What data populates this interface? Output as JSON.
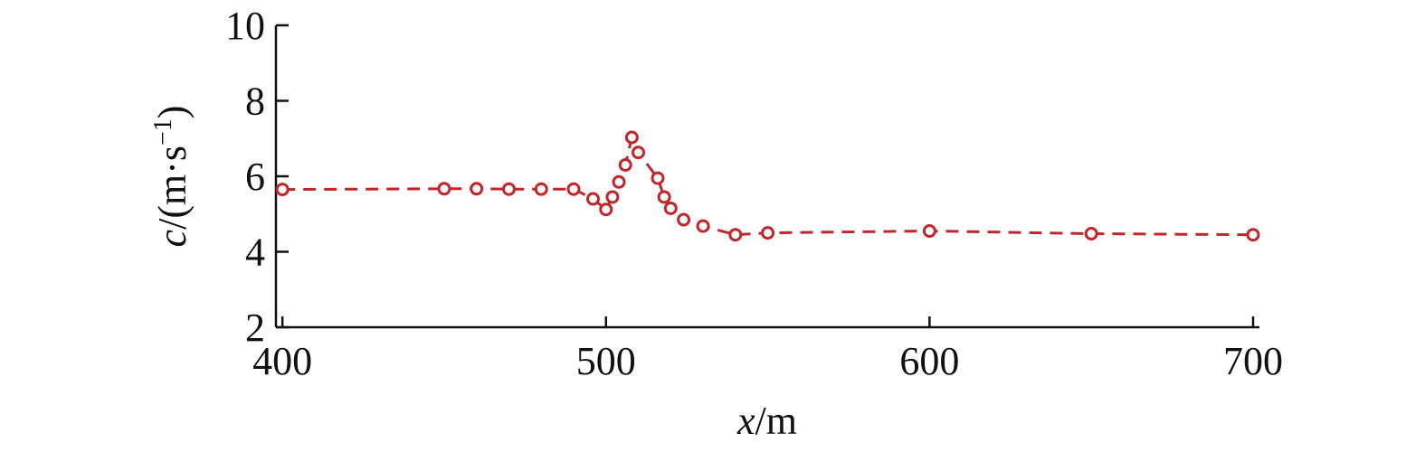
{
  "chart_data": {
    "type": "line",
    "xlabel": {
      "var": "x",
      "unit": "/m"
    },
    "ylabel": {
      "var": "c",
      "unit_prefix": "/(m·s",
      "unit_sup": "−1",
      "unit_suffix": ")"
    },
    "xlim": [
      398,
      700
    ],
    "ylim": [
      2,
      10
    ],
    "xticks": [
      400,
      500,
      600,
      700
    ],
    "yticks": [
      2,
      4,
      6,
      8,
      10
    ],
    "grid": false,
    "series": [
      {
        "color": "#c0272d",
        "marker": "open-circle",
        "line_style": "dashed",
        "x": [
          400,
          450,
          460,
          470,
          480,
          490,
          496,
          500,
          502,
          504,
          506,
          508,
          510,
          516,
          518,
          520,
          524,
          530,
          540,
          550,
          600,
          650,
          700
        ],
        "y": [
          5.65,
          5.67,
          5.67,
          5.66,
          5.66,
          5.66,
          5.4,
          5.12,
          5.45,
          5.85,
          6.3,
          7.03,
          6.63,
          5.95,
          5.45,
          5.15,
          4.85,
          4.68,
          4.45,
          4.5,
          4.55,
          4.48,
          4.45
        ]
      }
    ]
  }
}
